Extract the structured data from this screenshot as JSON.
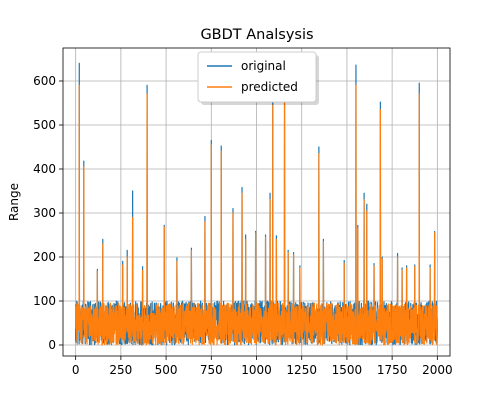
{
  "chart_data": {
    "type": "line",
    "title": "GBDT Analsysis",
    "xlabel": "",
    "ylabel": "Range",
    "xlim": [
      -70,
      2070
    ],
    "ylim": [
      -25,
      675
    ],
    "grid": true,
    "legend_position": "upper center",
    "x_ticks": [
      0,
      250,
      500,
      750,
      1000,
      1250,
      1500,
      1750,
      2000
    ],
    "x_tick_labels": [
      "0",
      "250",
      "500",
      "750",
      "1000",
      "1250",
      "1500",
      "1750",
      "2000"
    ],
    "y_ticks": [
      0,
      100,
      200,
      300,
      400,
      500,
      600
    ],
    "y_tick_labels": [
      "0",
      "100",
      "200",
      "300",
      "400",
      "500",
      "600"
    ],
    "series": [
      {
        "name": "original",
        "color": "#1f77b4",
        "x_range": [
          0,
          2000
        ],
        "baseline_range": [
          0,
          100
        ],
        "peaks": [
          {
            "x": 20,
            "y": 640
          },
          {
            "x": 45,
            "y": 418
          },
          {
            "x": 120,
            "y": 172
          },
          {
            "x": 150,
            "y": 240
          },
          {
            "x": 260,
            "y": 190
          },
          {
            "x": 285,
            "y": 215
          },
          {
            "x": 315,
            "y": 350
          },
          {
            "x": 370,
            "y": 178
          },
          {
            "x": 395,
            "y": 590
          },
          {
            "x": 490,
            "y": 272
          },
          {
            "x": 560,
            "y": 198
          },
          {
            "x": 640,
            "y": 220
          },
          {
            "x": 715,
            "y": 292
          },
          {
            "x": 750,
            "y": 465
          },
          {
            "x": 805,
            "y": 452
          },
          {
            "x": 870,
            "y": 310
          },
          {
            "x": 920,
            "y": 358
          },
          {
            "x": 940,
            "y": 250
          },
          {
            "x": 995,
            "y": 258
          },
          {
            "x": 1050,
            "y": 250
          },
          {
            "x": 1075,
            "y": 345
          },
          {
            "x": 1090,
            "y": 570
          },
          {
            "x": 1110,
            "y": 248
          },
          {
            "x": 1155,
            "y": 578
          },
          {
            "x": 1175,
            "y": 215
          },
          {
            "x": 1205,
            "y": 210
          },
          {
            "x": 1240,
            "y": 180
          },
          {
            "x": 1345,
            "y": 450
          },
          {
            "x": 1370,
            "y": 240
          },
          {
            "x": 1485,
            "y": 192
          },
          {
            "x": 1550,
            "y": 636
          },
          {
            "x": 1560,
            "y": 272
          },
          {
            "x": 1595,
            "y": 345
          },
          {
            "x": 1610,
            "y": 320
          },
          {
            "x": 1650,
            "y": 185
          },
          {
            "x": 1685,
            "y": 552
          },
          {
            "x": 1695,
            "y": 200
          },
          {
            "x": 1780,
            "y": 208
          },
          {
            "x": 1805,
            "y": 175
          },
          {
            "x": 1830,
            "y": 180
          },
          {
            "x": 1875,
            "y": 182
          },
          {
            "x": 1900,
            "y": 595
          },
          {
            "x": 1960,
            "y": 182
          },
          {
            "x": 1985,
            "y": 258
          }
        ]
      },
      {
        "name": "predicted",
        "color": "#ff7f0e",
        "x_range": [
          0,
          2000
        ],
        "baseline_range": [
          0,
          95
        ],
        "peaks": [
          {
            "x": 20,
            "y": 590
          },
          {
            "x": 45,
            "y": 405
          },
          {
            "x": 120,
            "y": 168
          },
          {
            "x": 150,
            "y": 230
          },
          {
            "x": 260,
            "y": 182
          },
          {
            "x": 285,
            "y": 200
          },
          {
            "x": 315,
            "y": 290
          },
          {
            "x": 370,
            "y": 170
          },
          {
            "x": 395,
            "y": 570
          },
          {
            "x": 490,
            "y": 268
          },
          {
            "x": 560,
            "y": 190
          },
          {
            "x": 640,
            "y": 215
          },
          {
            "x": 715,
            "y": 280
          },
          {
            "x": 750,
            "y": 455
          },
          {
            "x": 805,
            "y": 440
          },
          {
            "x": 870,
            "y": 300
          },
          {
            "x": 920,
            "y": 345
          },
          {
            "x": 940,
            "y": 240
          },
          {
            "x": 995,
            "y": 255
          },
          {
            "x": 1050,
            "y": 245
          },
          {
            "x": 1075,
            "y": 330
          },
          {
            "x": 1090,
            "y": 545
          },
          {
            "x": 1110,
            "y": 240
          },
          {
            "x": 1155,
            "y": 550
          },
          {
            "x": 1175,
            "y": 210
          },
          {
            "x": 1205,
            "y": 205
          },
          {
            "x": 1240,
            "y": 175
          },
          {
            "x": 1345,
            "y": 435
          },
          {
            "x": 1370,
            "y": 235
          },
          {
            "x": 1485,
            "y": 185
          },
          {
            "x": 1550,
            "y": 590
          },
          {
            "x": 1560,
            "y": 265
          },
          {
            "x": 1595,
            "y": 330
          },
          {
            "x": 1610,
            "y": 305
          },
          {
            "x": 1650,
            "y": 180
          },
          {
            "x": 1685,
            "y": 535
          },
          {
            "x": 1695,
            "y": 195
          },
          {
            "x": 1780,
            "y": 200
          },
          {
            "x": 1805,
            "y": 170
          },
          {
            "x": 1830,
            "y": 175
          },
          {
            "x": 1875,
            "y": 178
          },
          {
            "x": 1900,
            "y": 570
          },
          {
            "x": 1960,
            "y": 175
          },
          {
            "x": 1985,
            "y": 255
          }
        ]
      }
    ]
  }
}
